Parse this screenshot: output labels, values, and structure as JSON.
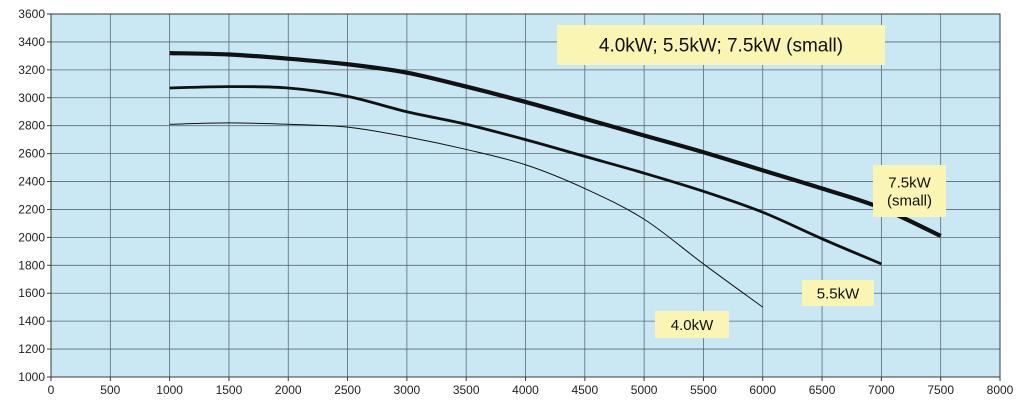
{
  "chart_data": {
    "type": "line",
    "title": "4.0kW; 5.5kW; 7.5kW (small)",
    "xlabel": "",
    "ylabel": "",
    "xlim": [
      0,
      8000
    ],
    "ylim": [
      1000,
      3600
    ],
    "x_ticks": [
      "0",
      "500",
      "1000",
      "1500",
      "2000",
      "2500",
      "3000",
      "3500",
      "4000",
      "4500",
      "5000",
      "5500",
      "6000",
      "6500",
      "7000",
      "7500",
      "8000"
    ],
    "y_ticks": [
      "1000",
      "1200",
      "1400",
      "1600",
      "1800",
      "2000",
      "2200",
      "2400",
      "2600",
      "2800",
      "3000",
      "3200",
      "3400",
      "3600"
    ],
    "grid": true,
    "background_color": "#c9e8f4",
    "series": [
      {
        "name": "7.5kW (small)",
        "color": "#111111",
        "points": [
          [
            1000,
            3320
          ],
          [
            1500,
            3310
          ],
          [
            2000,
            3280
          ],
          [
            2500,
            3240
          ],
          [
            3000,
            3180
          ],
          [
            3500,
            3080
          ],
          [
            4000,
            2970
          ],
          [
            4500,
            2850
          ],
          [
            5000,
            2730
          ],
          [
            5500,
            2610
          ],
          [
            6000,
            2480
          ],
          [
            6500,
            2350
          ],
          [
            7000,
            2210
          ],
          [
            7500,
            2010
          ]
        ]
      },
      {
        "name": "5.5kW",
        "color": "#111111",
        "points": [
          [
            1000,
            3070
          ],
          [
            1500,
            3080
          ],
          [
            2000,
            3070
          ],
          [
            2500,
            3010
          ],
          [
            3000,
            2900
          ],
          [
            3500,
            2810
          ],
          [
            4000,
            2700
          ],
          [
            4500,
            2580
          ],
          [
            5000,
            2460
          ],
          [
            5500,
            2330
          ],
          [
            6000,
            2180
          ],
          [
            6500,
            1990
          ],
          [
            7000,
            1810
          ]
        ]
      },
      {
        "name": "4.0kW",
        "color": "#111111",
        "points": [
          [
            1000,
            2810
          ],
          [
            1500,
            2820
          ],
          [
            2000,
            2810
          ],
          [
            2500,
            2790
          ],
          [
            3000,
            2720
          ],
          [
            3500,
            2630
          ],
          [
            4000,
            2520
          ],
          [
            4500,
            2350
          ],
          [
            5000,
            2130
          ],
          [
            5500,
            1810
          ],
          [
            6000,
            1500
          ]
        ]
      }
    ],
    "annotations": [
      {
        "id": "title",
        "lines": [
          "4.0kW; 5.5kW; 7.5kW (small)"
        ]
      },
      {
        "id": "7.5kW (small)",
        "lines": [
          "7.5kW",
          "(small)"
        ]
      },
      {
        "id": "5.5kW",
        "lines": [
          "5.5kW"
        ]
      },
      {
        "id": "4.0kW",
        "lines": [
          "4.0kW"
        ]
      }
    ]
  }
}
